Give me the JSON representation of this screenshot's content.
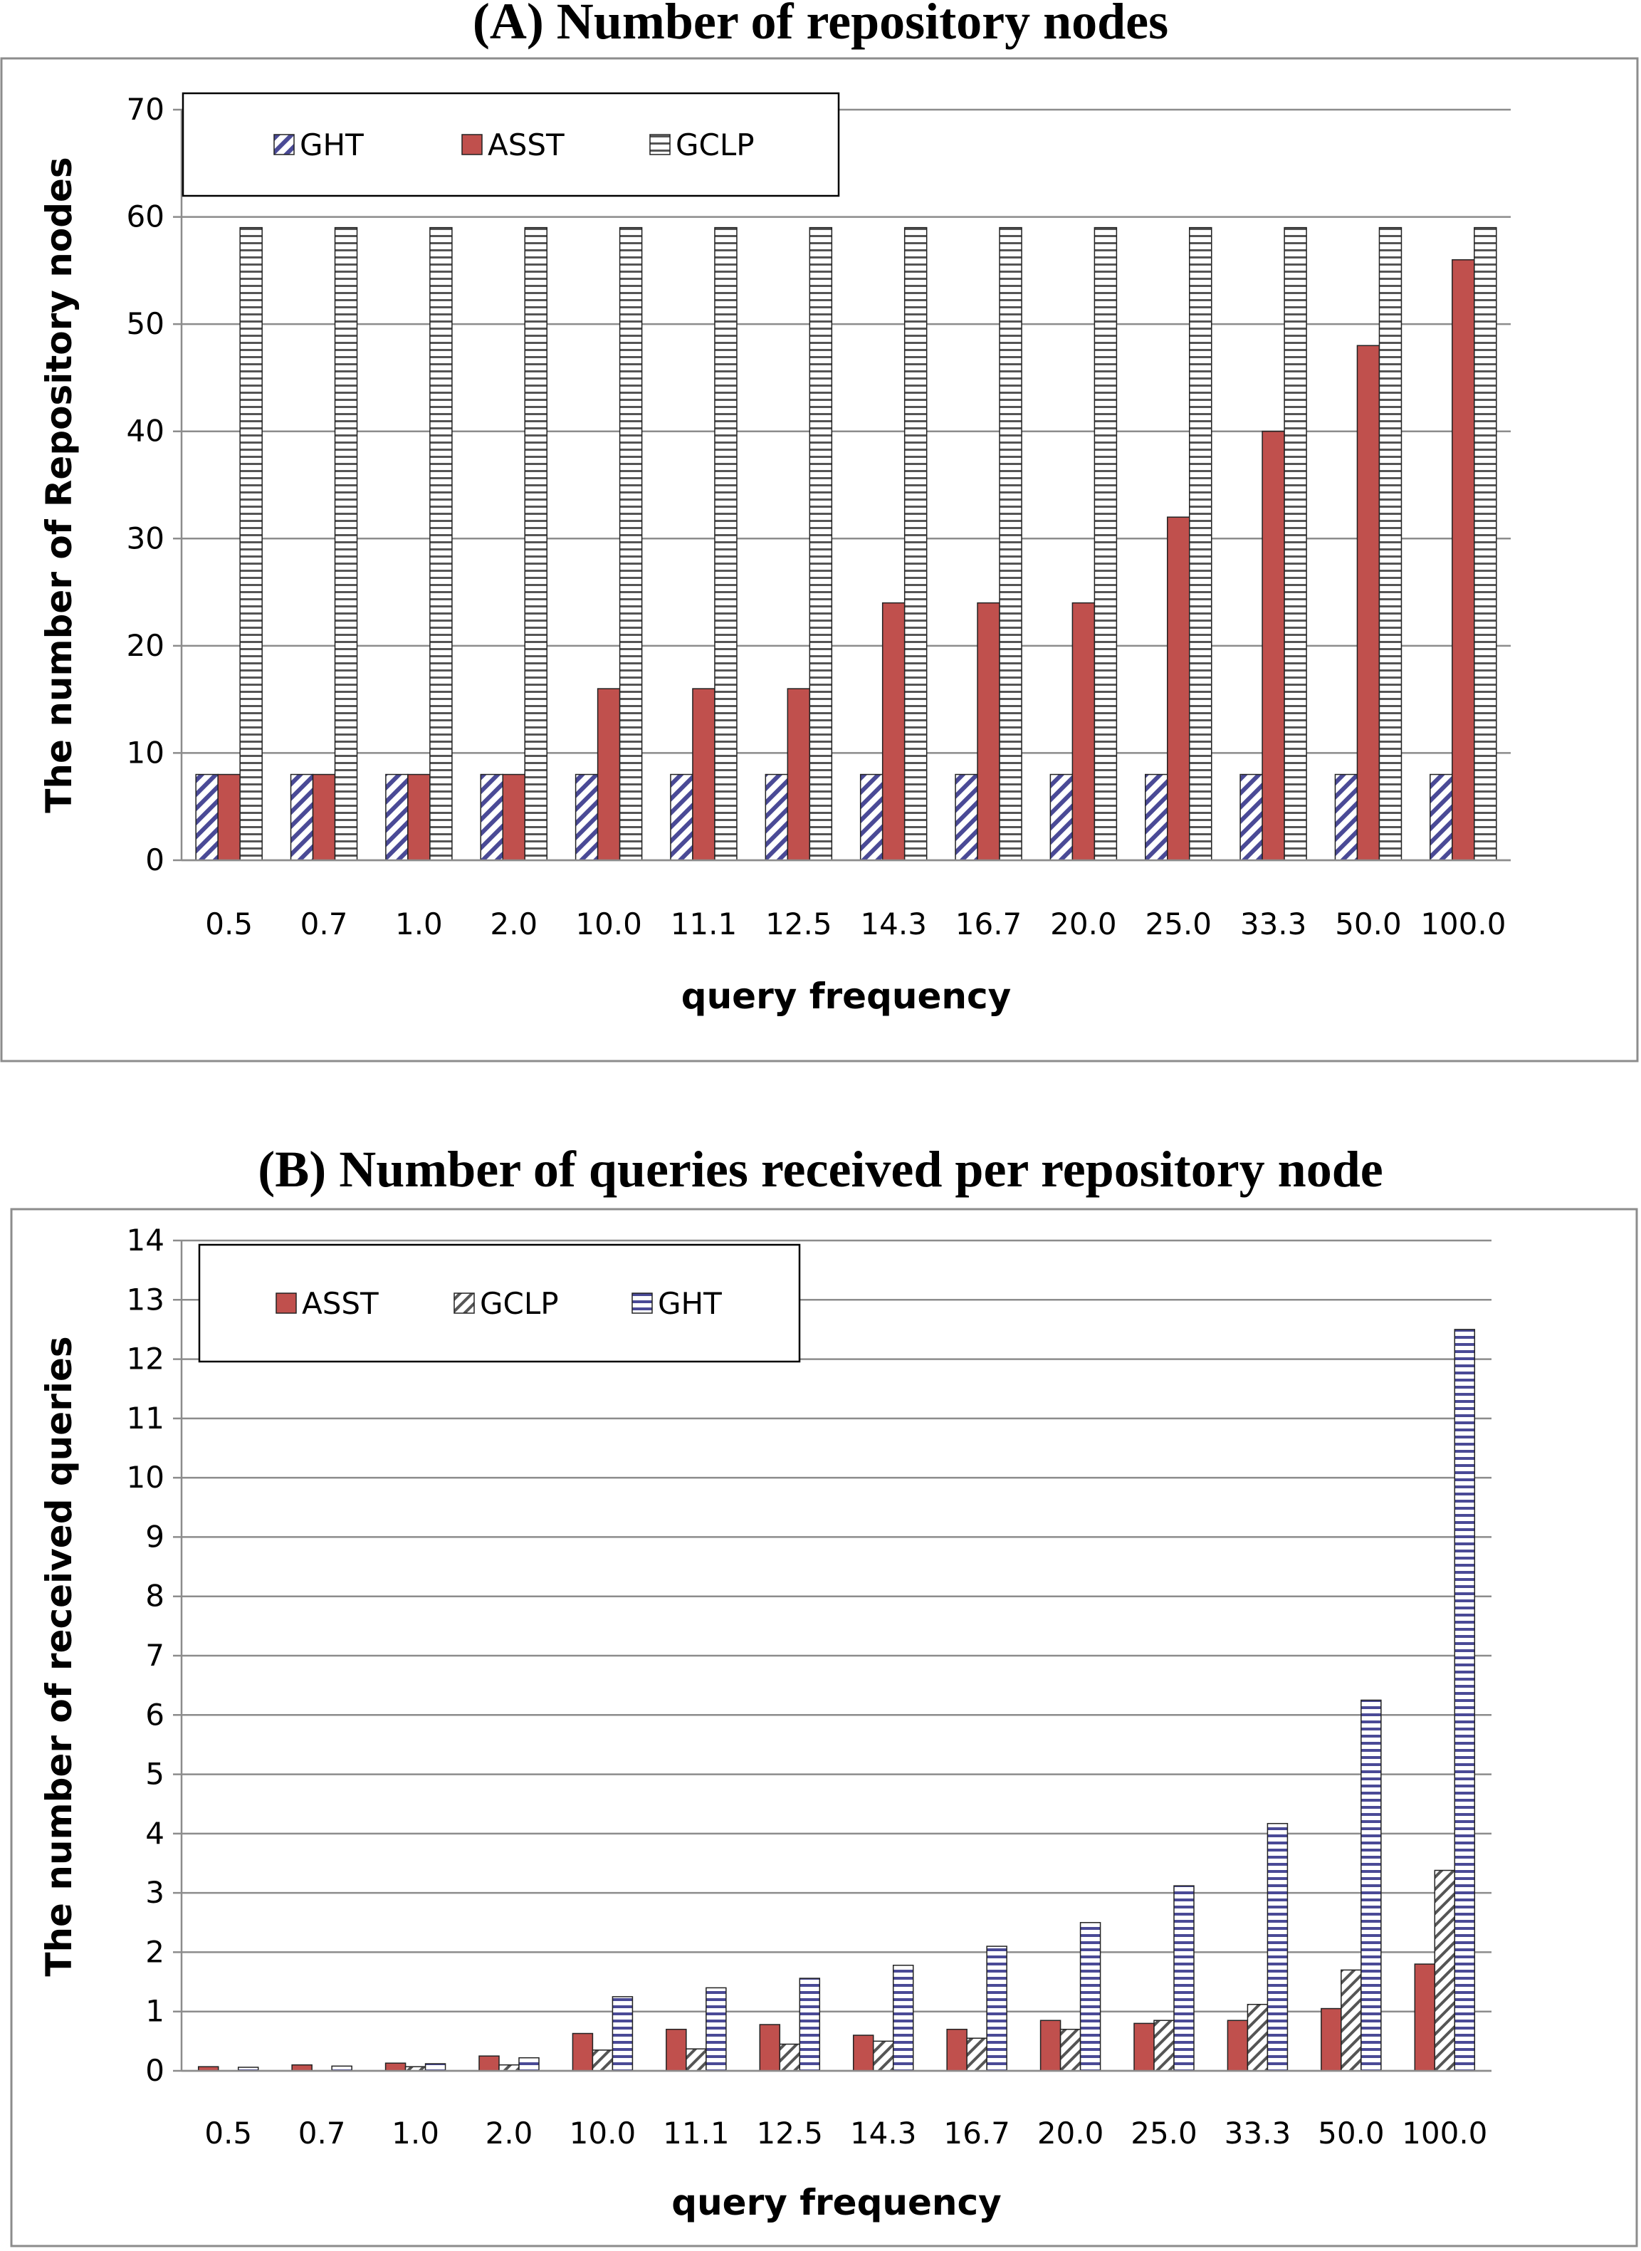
{
  "chart_data": [
    {
      "type": "bar",
      "title": "(A) Number of repository nodes",
      "xlabel": "query frequency",
      "ylabel": "The number of Repository nodes",
      "categories": [
        "0.5",
        "0.7",
        "1.0",
        "2.0",
        "10.0",
        "11.1",
        "12.5",
        "14.3",
        "16.7",
        "20.0",
        "25.0",
        "33.3",
        "50.0",
        "100.0"
      ],
      "series": [
        {
          "name": "GHT",
          "pattern": "diag-blue",
          "values": [
            8,
            8,
            8,
            8,
            8,
            8,
            8,
            8,
            8,
            8,
            8,
            8,
            8,
            8
          ]
        },
        {
          "name": "ASST",
          "pattern": "solid-red",
          "values": [
            8,
            8,
            8,
            8,
            16,
            16,
            16,
            24,
            24,
            24,
            32,
            40,
            48,
            56
          ]
        },
        {
          "name": "GCLP",
          "pattern": "horiz-gray",
          "values": [
            59,
            59,
            59,
            59,
            59,
            59,
            59,
            59,
            59,
            59,
            59,
            59,
            59,
            59
          ]
        }
      ],
      "ylim": [
        0,
        70
      ],
      "yticks": [
        0,
        10,
        20,
        30,
        40,
        50,
        60,
        70
      ],
      "grid": true,
      "legend": "top-left"
    },
    {
      "type": "bar",
      "title": "(B) Number of queries received per repository node",
      "xlabel": "query frequency",
      "ylabel": "The number of received queries",
      "categories": [
        "0.5",
        "0.7",
        "1.0",
        "2.0",
        "10.0",
        "11.1",
        "12.5",
        "14.3",
        "16.7",
        "20.0",
        "25.0",
        "33.3",
        "50.0",
        "100.0"
      ],
      "series": [
        {
          "name": "ASST",
          "pattern": "solid-red",
          "values": [
            0.07,
            0.1,
            0.13,
            0.25,
            0.63,
            0.7,
            0.78,
            0.6,
            0.7,
            0.85,
            0.8,
            0.85,
            1.05,
            1.8
          ]
        },
        {
          "name": "GCLP",
          "pattern": "diag-gray",
          "values": [
            0.0,
            0.0,
            0.07,
            0.1,
            0.35,
            0.37,
            0.45,
            0.5,
            0.55,
            0.7,
            0.85,
            1.12,
            1.7,
            3.38
          ]
        },
        {
          "name": "GHT",
          "pattern": "horiz-blue",
          "values": [
            0.06,
            0.08,
            0.12,
            0.22,
            1.25,
            1.4,
            1.56,
            1.78,
            2.1,
            2.5,
            3.12,
            4.17,
            6.25,
            12.5
          ]
        }
      ],
      "ylim": [
        0,
        14
      ],
      "yticks": [
        0,
        1,
        2,
        3,
        4,
        5,
        6,
        7,
        8,
        9,
        10,
        11,
        12,
        13,
        14
      ],
      "grid": true,
      "legend": "top-left"
    }
  ],
  "colors": {
    "asst_red": "#c0504d",
    "ght_blue": "#4a4a96",
    "gray_line": "#8c8c8c"
  }
}
